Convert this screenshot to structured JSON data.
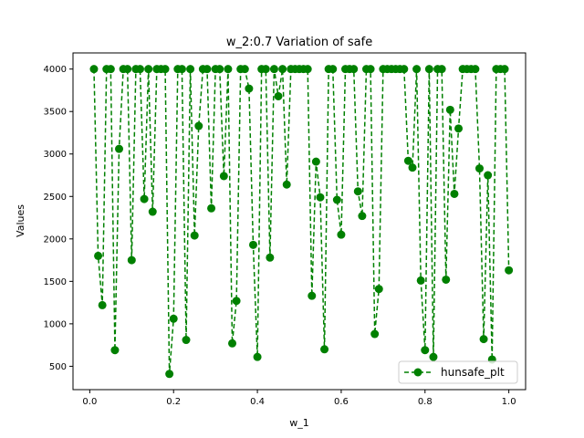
{
  "chart_data": {
    "type": "line",
    "title": "w_2:0.7 Variation of safe",
    "xlabel": "w_1",
    "ylabel": "Values",
    "xlim": [
      -0.04,
      1.04
    ],
    "ylim": [
      225,
      4190
    ],
    "xticks": [
      0.0,
      0.2,
      0.4,
      0.6,
      0.8,
      1.0
    ],
    "xtick_labels": [
      "0.0",
      "0.2",
      "0.4",
      "0.6",
      "0.8",
      "1.0"
    ],
    "yticks": [
      500,
      1000,
      1500,
      2000,
      2500,
      3000,
      3500,
      4000
    ],
    "ytick_labels": [
      "500",
      "1000",
      "1500",
      "2000",
      "2500",
      "3000",
      "3500",
      "4000"
    ],
    "grid": false,
    "legend_position": "lower-right",
    "series": [
      {
        "name": "hunsafe_plt",
        "color": "#008000",
        "line_style": "dashed",
        "marker": "circle",
        "x": [
          0.01,
          0.02,
          0.03,
          0.04,
          0.05,
          0.06,
          0.07,
          0.08,
          0.09,
          0.1,
          0.11,
          0.12,
          0.13,
          0.14,
          0.15,
          0.16,
          0.17,
          0.18,
          0.19,
          0.2,
          0.21,
          0.22,
          0.23,
          0.24,
          0.25,
          0.26,
          0.27,
          0.28,
          0.29,
          0.3,
          0.31,
          0.32,
          0.33,
          0.34,
          0.35,
          0.36,
          0.37,
          0.38,
          0.39,
          0.4,
          0.41,
          0.42,
          0.43,
          0.44,
          0.45,
          0.46,
          0.47,
          0.48,
          0.49,
          0.5,
          0.51,
          0.52,
          0.53,
          0.54,
          0.55,
          0.56,
          0.57,
          0.58,
          0.59,
          0.6,
          0.61,
          0.62,
          0.63,
          0.64,
          0.65,
          0.66,
          0.67,
          0.68,
          0.69,
          0.7,
          0.71,
          0.72,
          0.73,
          0.74,
          0.75,
          0.76,
          0.77,
          0.78,
          0.79,
          0.8,
          0.81,
          0.82,
          0.83,
          0.84,
          0.85,
          0.86,
          0.87,
          0.88,
          0.89,
          0.9,
          0.91,
          0.92,
          0.93,
          0.94,
          0.95,
          0.96,
          0.97,
          0.98,
          0.99,
          1.0
        ],
        "values": [
          4000,
          1800,
          1220,
          4000,
          4000,
          690,
          3060,
          4000,
          4000,
          1750,
          4000,
          4000,
          2470,
          4000,
          2320,
          4000,
          4000,
          4000,
          410,
          1060,
          4000,
          4000,
          810,
          4000,
          2040,
          3330,
          4000,
          4000,
          2360,
          4000,
          4000,
          2740,
          4000,
          770,
          1270,
          4000,
          4000,
          3770,
          1930,
          610,
          4000,
          4000,
          1780,
          4000,
          3680,
          4000,
          2640,
          4000,
          4000,
          4000,
          4000,
          4000,
          1330,
          2910,
          2490,
          700,
          4000,
          4000,
          2460,
          2050,
          4000,
          4000,
          4000,
          2560,
          2270,
          4000,
          4000,
          880,
          1410,
          4000,
          4000,
          4000,
          4000,
          4000,
          4000,
          2920,
          2840,
          4000,
          1510,
          690,
          4000,
          610,
          4000,
          4000,
          1520,
          3520,
          2530,
          3300,
          4000,
          4000,
          4000,
          4000,
          2830,
          820,
          2750,
          580,
          4000,
          4000,
          4000,
          1630
        ]
      }
    ]
  }
}
